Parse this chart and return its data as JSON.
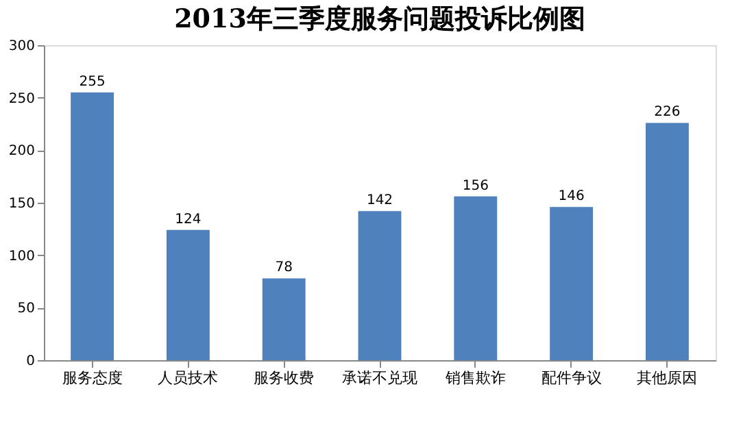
{
  "chart_data": {
    "type": "bar",
    "title": "2013年三季度服务问题投诉比例图",
    "categories": [
      "服务态度",
      "人员技术",
      "服务收费",
      "承诺不兑现",
      "销售欺诈",
      "配件争议",
      "其他原因"
    ],
    "values": [
      255,
      124,
      78,
      142,
      156,
      146,
      226
    ],
    "color": "#4f81bd",
    "ylim": [
      0,
      300
    ],
    "yticks": [
      0,
      50,
      100,
      150,
      200,
      250,
      300
    ],
    "grid": false,
    "data_labels": true
  }
}
